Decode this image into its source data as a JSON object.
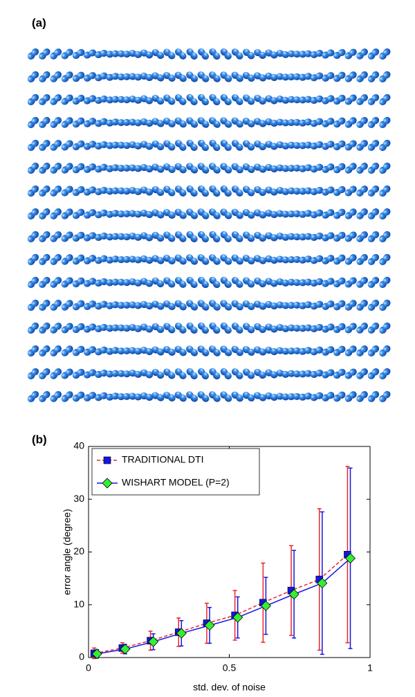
{
  "panel_a": {
    "label": "(a)"
  },
  "chart_data": {
    "type": "line",
    "panel_label": "(b)",
    "xlabel": "std. dev. of noise",
    "ylabel": "error angle (degree)",
    "xlim": [
      0,
      1
    ],
    "xticks": [
      0,
      0.5,
      1
    ],
    "ylim": [
      0,
      40
    ],
    "yticks": [
      0,
      10,
      20,
      30,
      40
    ],
    "legend": "upper left",
    "series": [
      {
        "name": "TRADITIONAL DTI",
        "color": "#e8262a",
        "marker_color": "#1515e0",
        "marker": "square",
        "dashed": true,
        "x": [
          0.02,
          0.12,
          0.22,
          0.32,
          0.42,
          0.52,
          0.62,
          0.72,
          0.82,
          0.92
        ],
        "values": [
          0.8,
          1.8,
          3.2,
          4.8,
          6.5,
          8.0,
          10.4,
          12.7,
          14.8,
          19.5
        ],
        "errors": [
          1.0,
          1.0,
          1.8,
          2.7,
          3.8,
          4.7,
          7.5,
          8.5,
          13.4,
          16.7
        ]
      },
      {
        "name": "WISHART MODEL (P=2)",
        "color": "#1515e0",
        "marker_color": "#33ee33",
        "marker": "diamond",
        "dashed": false,
        "x": [
          0.03,
          0.13,
          0.23,
          0.33,
          0.43,
          0.53,
          0.63,
          0.73,
          0.83,
          0.93
        ],
        "values": [
          0.7,
          1.6,
          3.0,
          4.6,
          6.1,
          7.6,
          9.8,
          12.0,
          14.1,
          18.8
        ],
        "errors": [
          0.8,
          0.9,
          1.5,
          2.4,
          3.4,
          3.9,
          5.4,
          8.3,
          13.5,
          17.1
        ]
      }
    ]
  }
}
